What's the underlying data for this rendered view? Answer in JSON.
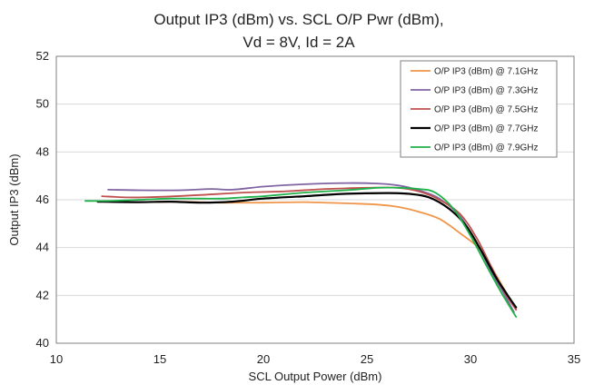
{
  "chart_data": {
    "type": "line",
    "title_lines": [
      "Output IP3 (dBm) vs. SCL  O/P Pwr (dBm),",
      "Vd = 8V, Id = 2A"
    ],
    "xlabel": "SCL Output Power (dBm)",
    "ylabel": "Output IP3 (dBm)",
    "xlim": [
      10,
      35
    ],
    "ylim": [
      40,
      52
    ],
    "x_ticks": [
      10,
      15,
      20,
      25,
      30,
      35
    ],
    "y_ticks": [
      40,
      42,
      44,
      46,
      48,
      50,
      52
    ],
    "grid": "horizontal",
    "legend_position": "top-right",
    "series": [
      {
        "name": "O/P IP3 (dBm) @ 7.1GHz",
        "color": "#f0954a",
        "points": [
          [
            12.3,
            45.95
          ],
          [
            14,
            45.9
          ],
          [
            16,
            45.92
          ],
          [
            18,
            45.88
          ],
          [
            20,
            45.88
          ],
          [
            22,
            45.9
          ],
          [
            24,
            45.85
          ],
          [
            25.5,
            45.8
          ],
          [
            26.5,
            45.7
          ],
          [
            27.5,
            45.5
          ],
          [
            28.5,
            45.2
          ],
          [
            29.5,
            44.6
          ],
          [
            30.5,
            43.9
          ],
          [
            31.2,
            42.9
          ],
          [
            31.8,
            42.0
          ],
          [
            32.2,
            41.4
          ]
        ]
      },
      {
        "name": "O/P IP3 (dBm) @ 7.3GHz",
        "color": "#8064a2",
        "points": [
          [
            12.5,
            46.42
          ],
          [
            14,
            46.4
          ],
          [
            16,
            46.4
          ],
          [
            17.5,
            46.45
          ],
          [
            18.5,
            46.42
          ],
          [
            20,
            46.55
          ],
          [
            22,
            46.65
          ],
          [
            24,
            46.7
          ],
          [
            25.5,
            46.68
          ],
          [
            26.5,
            46.6
          ],
          [
            27.5,
            46.4
          ],
          [
            28.5,
            46.05
          ],
          [
            29.5,
            45.3
          ],
          [
            30.3,
            44.2
          ],
          [
            31,
            43.0
          ],
          [
            31.6,
            42.1
          ],
          [
            32.1,
            41.3
          ]
        ]
      },
      {
        "name": "O/P IP3 (dBm) @ 7.5GHz",
        "color": "#c0504d",
        "points": [
          [
            12.2,
            46.15
          ],
          [
            13.5,
            46.1
          ],
          [
            15,
            46.12
          ],
          [
            17,
            46.2
          ],
          [
            19,
            46.3
          ],
          [
            21,
            46.35
          ],
          [
            23,
            46.45
          ],
          [
            25,
            46.5
          ],
          [
            26.5,
            46.5
          ],
          [
            27.5,
            46.35
          ],
          [
            28.5,
            46.0
          ],
          [
            29.5,
            45.4
          ],
          [
            30.3,
            44.4
          ],
          [
            31,
            43.2
          ],
          [
            31.6,
            42.2
          ],
          [
            32.2,
            41.4
          ]
        ]
      },
      {
        "name": "O/P IP3 (dBm) @ 7.7GHz",
        "color": "#000000",
        "points": [
          [
            12.0,
            45.92
          ],
          [
            14,
            45.9
          ],
          [
            15.5,
            45.92
          ],
          [
            17,
            45.88
          ],
          [
            18.5,
            45.92
          ],
          [
            20,
            46.05
          ],
          [
            22,
            46.15
          ],
          [
            24,
            46.25
          ],
          [
            26,
            46.28
          ],
          [
            27,
            46.25
          ],
          [
            28,
            46.1
          ],
          [
            29,
            45.6
          ],
          [
            29.8,
            44.9
          ],
          [
            30.5,
            43.9
          ],
          [
            31.2,
            42.8
          ],
          [
            31.8,
            42.0
          ],
          [
            32.2,
            41.5
          ]
        ]
      },
      {
        "name": "O/P IP3 (dBm) @ 7.9GHz",
        "color": "#1fb14a",
        "points": [
          [
            11.4,
            45.95
          ],
          [
            12.5,
            45.95
          ],
          [
            14,
            46.0
          ],
          [
            15.5,
            46.05
          ],
          [
            17,
            46.05
          ],
          [
            18,
            46.05
          ],
          [
            19,
            46.1
          ],
          [
            20,
            46.15
          ],
          [
            22,
            46.3
          ],
          [
            24,
            46.4
          ],
          [
            25.5,
            46.5
          ],
          [
            26.5,
            46.5
          ],
          [
            27.5,
            46.45
          ],
          [
            28.3,
            46.3
          ],
          [
            29.2,
            45.6
          ],
          [
            30,
            44.5
          ],
          [
            30.8,
            43.2
          ],
          [
            31.5,
            42.1
          ],
          [
            32.2,
            41.1
          ]
        ]
      }
    ]
  }
}
